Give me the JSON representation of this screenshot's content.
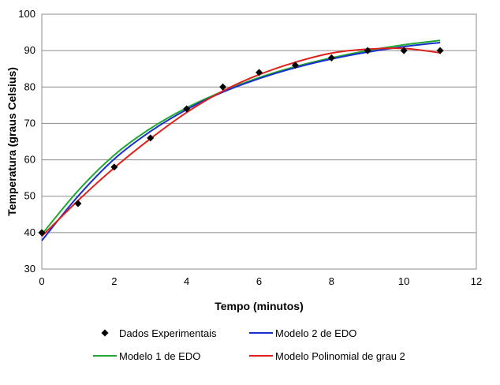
{
  "chart_data": {
    "type": "line",
    "title": "",
    "xlabel": "Tempo (minutos)",
    "ylabel": "Temperatura (graus Celsius)",
    "xlim": [
      0,
      12
    ],
    "ylim": [
      30,
      100
    ],
    "xticks": [
      0,
      2,
      4,
      6,
      8,
      10,
      12
    ],
    "yticks": [
      30,
      40,
      50,
      60,
      70,
      80,
      90,
      100
    ],
    "grid": "horizontal",
    "legend_position": "bottom",
    "scatter": {
      "name": "Dados Experimentais",
      "color": "#000000",
      "marker": "diamond",
      "points": [
        {
          "x": 0,
          "y": 40
        },
        {
          "x": 1,
          "y": 48
        },
        {
          "x": 2,
          "y": 58
        },
        {
          "x": 3,
          "y": 66
        },
        {
          "x": 4,
          "y": 74
        },
        {
          "x": 5,
          "y": 80
        },
        {
          "x": 6,
          "y": 84
        },
        {
          "x": 7,
          "y": 86
        },
        {
          "x": 8,
          "y": 88
        },
        {
          "x": 9,
          "y": 90
        },
        {
          "x": 10,
          "y": 90
        },
        {
          "x": 11,
          "y": 90
        }
      ]
    },
    "series": [
      {
        "name": "Modelo 1 de EDO",
        "color": "#22a832",
        "x": [
          0,
          1,
          2,
          3,
          4,
          5,
          6,
          7,
          8,
          9,
          10,
          11
        ],
        "values": [
          39.5,
          51.5,
          61.3,
          68.6,
          74.3,
          78.8,
          82.6,
          85.6,
          88.0,
          90.0,
          91.6,
          92.8
        ]
      },
      {
        "name": "Modelo 2 de EDO",
        "color": "#1a2fcf",
        "x": [
          0,
          1,
          2,
          3,
          4,
          5,
          6,
          7,
          8,
          9,
          10,
          11
        ],
        "values": [
          37.8,
          50.0,
          60.2,
          67.8,
          73.8,
          78.6,
          82.3,
          85.3,
          87.7,
          89.6,
          91.1,
          92.2
        ]
      },
      {
        "name": "Modelo Polinomial de grau 2",
        "color": "#e0201a",
        "x": [
          0,
          1,
          2,
          3,
          4,
          5,
          6,
          7,
          8,
          9,
          10,
          11
        ],
        "values": [
          39.0,
          48.8,
          57.8,
          65.8,
          73.0,
          78.9,
          83.4,
          86.8,
          89.3,
          90.4,
          90.6,
          89.4
        ]
      }
    ]
  },
  "legend": {
    "items": [
      {
        "label": "Dados Experimentais",
        "kind": "scatter",
        "color": "#000000"
      },
      {
        "label": "Modelo 2 de EDO",
        "kind": "line",
        "color": "#1a2fcf"
      },
      {
        "label": "Modelo 1 de EDO",
        "kind": "line",
        "color": "#22a832"
      },
      {
        "label": "Modelo Polinomial de grau 2",
        "kind": "line",
        "color": "#e0201a"
      }
    ]
  }
}
